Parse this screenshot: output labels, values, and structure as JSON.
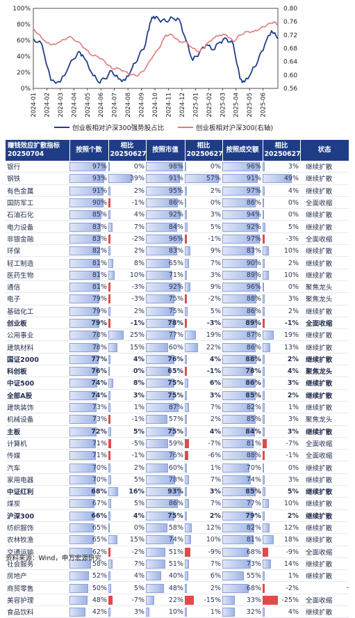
{
  "chart_data": [
    {
      "type": "line",
      "x_dates": [
        "2024-01",
        "2024-02",
        "2024-03",
        "2024-04",
        "2024-05",
        "2024-06",
        "2024-07",
        "2024-08",
        "2024-09",
        "2024-10",
        "2024-11",
        "2024-12",
        "2025-01",
        "2025-02",
        "2025-03",
        "2025-04",
        "2025-05",
        "2025-06"
      ],
      "y_left": {
        "ylim": [
          0,
          100
        ],
        "ticks": [
          "0%",
          "20%",
          "40%",
          "60%",
          "80%",
          "100%"
        ]
      },
      "y_right": {
        "ylim": [
          0.56,
          0.8
        ],
        "ticks": [
          "0.56",
          "0.60",
          "0.64",
          "0.68",
          "0.72",
          "0.76",
          "0.80"
        ]
      },
      "series": [
        {
          "name": "创业板相对沪深300强势股占比",
          "axis": "left",
          "color": "#1f3d87",
          "x": [
            "2024-01",
            "2024-01-20",
            "2024-02-10",
            "2024-03-01",
            "2024-03-20",
            "2024-04-10",
            "2024-04-20",
            "2024-05-10",
            "2024-05-25",
            "2024-06-10",
            "2024-06-25",
            "2024-07-10",
            "2024-07-25",
            "2024-08-10",
            "2024-08-25",
            "2024-09-10",
            "2024-09-20",
            "2024-09-28",
            "2024-10-10",
            "2024-10-25",
            "2024-11-10",
            "2024-11-25",
            "2024-12-10",
            "2024-12-25",
            "2025-01-10",
            "2025-01-25",
            "2025-02-10",
            "2025-02-25",
            "2025-03-10",
            "2025-03-25",
            "2025-04-10",
            "2025-04-20",
            "2025-05-05",
            "2025-05-20",
            "2025-06-05",
            "2025-06-20",
            "2025-07-04"
          ],
          "y": [
            62,
            55,
            10,
            8,
            28,
            45,
            42,
            20,
            8,
            12,
            22,
            12,
            10,
            25,
            40,
            55,
            82,
            90,
            86,
            84,
            88,
            86,
            60,
            35,
            45,
            55,
            48,
            58,
            62,
            55,
            12,
            8,
            20,
            35,
            55,
            72,
            62
          ]
        },
        {
          "name": "创业板相对沪深300(右轴)",
          "axis": "right",
          "color": "#e07a7a",
          "x": [
            "2024-01",
            "2024-01-20",
            "2024-02-10",
            "2024-03-01",
            "2024-03-20",
            "2024-04-10",
            "2024-04-25",
            "2024-05-10",
            "2024-05-25",
            "2024-06-10",
            "2024-06-25",
            "2024-07-10",
            "2024-07-25",
            "2024-08-10",
            "2024-08-25",
            "2024-09-10",
            "2024-09-28",
            "2024-10-10",
            "2024-10-25",
            "2024-11-10",
            "2024-11-25",
            "2024-12-10",
            "2024-12-25",
            "2025-01-10",
            "2025-01-25",
            "2025-02-10",
            "2025-02-25",
            "2025-03-10",
            "2025-03-25",
            "2025-04-10",
            "2025-04-25",
            "2025-05-10",
            "2025-05-25",
            "2025-06-10",
            "2025-06-25",
            "2025-07-04"
          ],
          "y": [
            0.74,
            0.71,
            0.69,
            0.7,
            0.715,
            0.7,
            0.68,
            0.66,
            0.655,
            0.64,
            0.62,
            0.62,
            0.61,
            0.6,
            0.6,
            0.62,
            0.66,
            0.68,
            0.72,
            0.72,
            0.7,
            0.7,
            0.68,
            0.67,
            0.69,
            0.71,
            0.72,
            0.72,
            0.7,
            0.72,
            0.73,
            0.73,
            0.74,
            0.75,
            0.76,
            0.75
          ]
        }
      ]
    },
    {
      "type": "table",
      "columns": [
        "赚钱效应扩散指标\n20250704",
        "按照个数",
        "相比\n20250627",
        "按照市值",
        "相比\n20250627",
        "按照成交额",
        "相比\n20250627",
        "状态"
      ],
      "rows": [
        {
          "name": "银行",
          "bold": false,
          "c": [
            97,
            0,
            98,
            0,
            96,
            3
          ],
          "status": "继续扩散"
        },
        {
          "name": "钢铁",
          "bold": false,
          "c": [
            93,
            39,
            91,
            57,
            91,
            49
          ],
          "status": "继续扩散"
        },
        {
          "name": "有色金属",
          "bold": false,
          "c": [
            91,
            2,
            95,
            2,
            97,
            4
          ],
          "status": "继续扩散"
        },
        {
          "name": "国防军工",
          "bold": false,
          "c": [
            90,
            -1,
            86,
            0,
            86,
            0
          ],
          "status": "全面收缩"
        },
        {
          "name": "石油石化",
          "bold": false,
          "c": [
            85,
            4,
            92,
            3,
            94,
            0
          ],
          "status": "继续扩散"
        },
        {
          "name": "电力设备",
          "bold": false,
          "c": [
            83,
            7,
            84,
            5,
            92,
            5
          ],
          "status": "继续扩散"
        },
        {
          "name": "非银金融",
          "bold": false,
          "c": [
            83,
            -2,
            96,
            -1,
            97,
            -3
          ],
          "status": "全面收缩"
        },
        {
          "name": "环保",
          "bold": false,
          "c": [
            82,
            2,
            83,
            9,
            83,
            10
          ],
          "status": "继续扩散"
        },
        {
          "name": "轻工制造",
          "bold": false,
          "c": [
            81,
            8,
            65,
            7,
            90,
            2
          ],
          "status": "继续扩散"
        },
        {
          "name": "医药生物",
          "bold": false,
          "c": [
            81,
            10,
            71,
            3,
            89,
            10
          ],
          "status": "继续扩散"
        },
        {
          "name": "通信",
          "bold": false,
          "c": [
            81,
            -3,
            92,
            9,
            96,
            0
          ],
          "status": "聚焦龙头"
        },
        {
          "name": "电子",
          "bold": false,
          "c": [
            79,
            -3,
            75,
            -2,
            88,
            3
          ],
          "status": "聚焦龙头"
        },
        {
          "name": "基础化工",
          "bold": false,
          "c": [
            79,
            2,
            75,
            5,
            86,
            2
          ],
          "status": "继续扩散"
        },
        {
          "name": "创业板",
          "bold": true,
          "c": [
            79,
            -1,
            78,
            -3,
            89,
            -1
          ],
          "status": "全面收缩"
        },
        {
          "name": "公用事业",
          "bold": false,
          "c": [
            78,
            25,
            77,
            19,
            87,
            19
          ],
          "status": "继续扩散"
        },
        {
          "name": "建筑材料",
          "bold": false,
          "c": [
            78,
            15,
            60,
            22,
            86,
            13
          ],
          "status": "继续扩散"
        },
        {
          "name": "国证2000",
          "bold": true,
          "c": [
            77,
            4,
            76,
            4,
            88,
            2
          ],
          "status": "继续扩散"
        },
        {
          "name": "科创板",
          "bold": true,
          "c": [
            76,
            0,
            65,
            -1,
            78,
            4
          ],
          "status": "聚焦龙头"
        },
        {
          "name": "中证500",
          "bold": true,
          "c": [
            74,
            8,
            75,
            6,
            86,
            3
          ],
          "status": "继续扩散"
        },
        {
          "name": "全部A股",
          "bold": true,
          "c": [
            74,
            3,
            75,
            3,
            85,
            2
          ],
          "status": "继续扩散"
        },
        {
          "name": "建筑装饰",
          "bold": false,
          "c": [
            73,
            1,
            87,
            7,
            82,
            1
          ],
          "status": "继续扩散"
        },
        {
          "name": "机械设备",
          "bold": false,
          "c": [
            73,
            -1,
            57,
            2,
            85,
            3
          ],
          "status": "聚焦龙头"
        },
        {
          "name": "主板",
          "bold": true,
          "c": [
            72,
            5,
            75,
            4,
            84,
            3
          ],
          "status": "继续扩散"
        },
        {
          "name": "计算机",
          "bold": false,
          "c": [
            71,
            -5,
            59,
            -7,
            81,
            -7
          ],
          "status": "全面收缩"
        },
        {
          "name": "传媒",
          "bold": false,
          "c": [
            71,
            -1,
            76,
            -6,
            88,
            -1
          ],
          "status": "全面收缩"
        },
        {
          "name": "汽车",
          "bold": false,
          "c": [
            70,
            2,
            60,
            1,
            70,
            0
          ],
          "status": "继续扩散"
        },
        {
          "name": "家用电器",
          "bold": false,
          "c": [
            70,
            5,
            78,
            7,
            74,
            3
          ],
          "status": "继续扩散"
        },
        {
          "name": "中证红利",
          "bold": true,
          "c": [
            68,
            16,
            93,
            3,
            85,
            5
          ],
          "status": "继续扩散"
        },
        {
          "name": "煤炭",
          "bold": false,
          "c": [
            67,
            5,
            86,
            7,
            77,
            10
          ],
          "status": "继续扩散"
        },
        {
          "name": "沪深300",
          "bold": true,
          "c": [
            66,
            4,
            75,
            2,
            79,
            2
          ],
          "status": "继续扩散"
        },
        {
          "name": "纺织服饰",
          "bold": false,
          "c": [
            65,
            0,
            58,
            12,
            82,
            12
          ],
          "status": "继续扩散"
        },
        {
          "name": "农林牧渔",
          "bold": false,
          "c": [
            65,
            15,
            74,
            10,
            81,
            18
          ],
          "status": "继续扩散"
        },
        {
          "name": "交通运输",
          "bold": false,
          "c": [
            62,
            -2,
            51,
            -9,
            68,
            -9
          ],
          "status": "全面收缩"
        },
        {
          "name": "社会服务",
          "bold": false,
          "c": [
            58,
            7,
            51,
            7,
            73,
            14
          ],
          "status": "继续扩散"
        },
        {
          "name": "房地产",
          "bold": false,
          "c": [
            52,
            4,
            40,
            6,
            55,
            1
          ],
          "status": "继续扩散"
        },
        {
          "name": "商贸零售",
          "bold": false,
          "c": [
            50,
            5,
            48,
            2,
            68,
            -2
          ],
          "status": "-"
        },
        {
          "name": "美容护理",
          "bold": false,
          "c": [
            48,
            -7,
            22,
            -15,
            33,
            -25
          ],
          "status": "全面收缩"
        },
        {
          "name": "食品饮料",
          "bold": false,
          "c": [
            42,
            3,
            10,
            1,
            32,
            4
          ],
          "status": "继续扩散"
        }
      ]
    }
  ],
  "legend": {
    "series1": "创业板相对沪深300强势股占比",
    "series2": "创业板相对沪深300(右轴)"
  },
  "header": {
    "col0_l1": "赚钱效应扩散指标",
    "col0_l2": "20250704",
    "col1": "按照个数",
    "col2_l1": "相比",
    "col2_l2": "20250627",
    "col3": "按照市值",
    "col4_l1": "相比",
    "col4_l2": "20250627",
    "col5": "按照成交额",
    "col6_l1": "相比",
    "col6_l2": "20250627",
    "col7": "状态"
  },
  "source": "资料来源：Wind，申万宏源研究",
  "colors": {
    "navy": "#1f3d87",
    "pink": "#e07a7a",
    "bar_red": "#e04a4a"
  }
}
